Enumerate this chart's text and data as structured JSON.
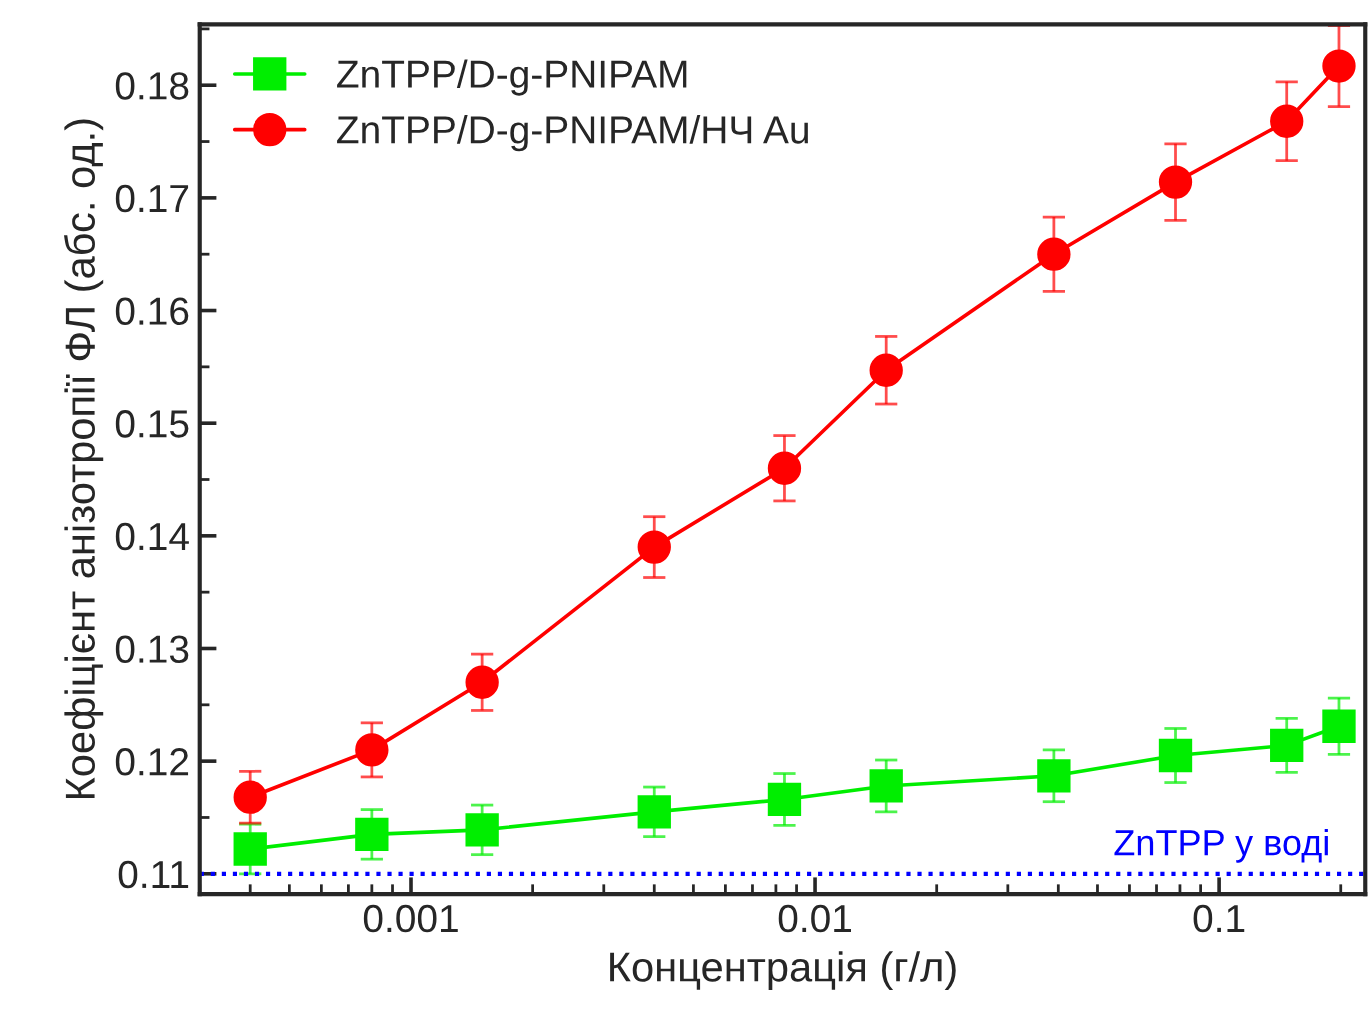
{
  "chart_data": {
    "type": "line",
    "xlabel": "Концентрація (г/л)",
    "ylabel": "Коефіцієнт анізотропії ФЛ (абс. од.)",
    "log": "x",
    "xlim": [
      0.0003,
      0.23
    ],
    "xticks": [
      0.001,
      0.01,
      0.1
    ],
    "ylim": [
      0.1082,
      0.1854
    ],
    "yticks": [
      0.11,
      0.12,
      0.13,
      0.14,
      0.15,
      0.16,
      0.17,
      0.18
    ],
    "x": [
      0.0004,
      0.0008,
      0.0015,
      0.004,
      0.0084,
      0.015,
      0.039,
      0.078,
      0.147,
      0.198
    ],
    "series": [
      {
        "name": "ZnTPP/D-g-PNIPAM",
        "color": "#00ee00",
        "marker": "square",
        "values": [
          0.1122,
          0.1135,
          0.1139,
          0.1155,
          0.1166,
          0.1178,
          0.1187,
          0.1205,
          0.1214,
          0.1231
        ],
        "errors": [
          0.0022,
          0.0022,
          0.0022,
          0.0022,
          0.0023,
          0.0023,
          0.0023,
          0.0024,
          0.0024,
          0.0025
        ]
      },
      {
        "name": "ZnTPP/D-g-PNIPAM/НЧ Au",
        "color": "#ff0000",
        "marker": "circle",
        "values": [
          0.1168,
          0.121,
          0.127,
          0.139,
          0.146,
          0.1547,
          0.165,
          0.1714,
          0.1768,
          0.1817
        ],
        "errors": [
          0.0023,
          0.0024,
          0.0025,
          0.0027,
          0.0029,
          0.003,
          0.0033,
          0.0034,
          0.0035,
          0.0036
        ]
      }
    ],
    "ref_lines": [
      {
        "axis": "y",
        "value": 0.11,
        "label": "ZnTPP у воді",
        "color": "#0000ff",
        "line_style": "dotted"
      }
    ],
    "legend": "top left",
    "grid": false
  }
}
